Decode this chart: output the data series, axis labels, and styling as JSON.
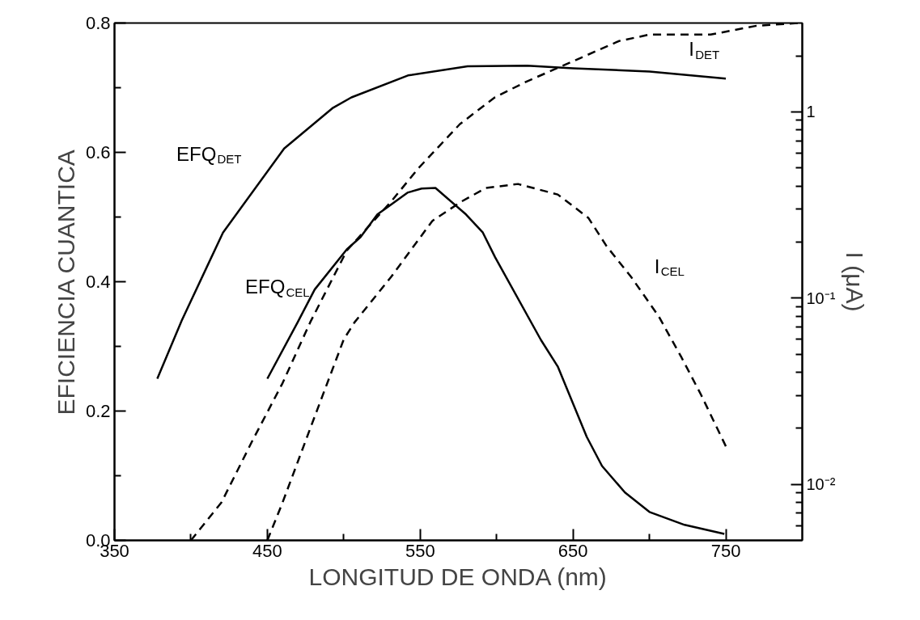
{
  "chart_data": {
    "type": "line",
    "xlabel": "LONGITUD DE ONDA (nm)",
    "ylabel": "EFICIENCIA CUANTICA",
    "y2label": "I (μA)",
    "xlim": [
      350,
      800
    ],
    "xticks": [
      350,
      {
        "value": 400,
        "label": null
      },
      450,
      {
        "value": 500,
        "label": null
      },
      550,
      {
        "value": 600,
        "label": null
      },
      650,
      {
        "value": 700,
        "label": null
      },
      750
    ],
    "ylim": [
      0,
      0.8
    ],
    "yticks": [
      {
        "value": 0,
        "label": "0.0"
      },
      {
        "value": 0.1,
        "label": null
      },
      0.2,
      {
        "value": 0.3,
        "label": null
      },
      0.4,
      {
        "value": 0.5,
        "label": null
      },
      0.6,
      {
        "value": 0.7,
        "label": null
      },
      0.8
    ],
    "y2lim": [
      0.005,
      3
    ],
    "log": "y2",
    "y2ticks": [
      {
        "value": 0.006,
        "label": null
      },
      {
        "value": 0.007,
        "label": null
      },
      {
        "value": 0.008,
        "label": null
      },
      {
        "value": 0.009,
        "label": null
      },
      {
        "value": 0.01,
        "label": "10⁻²"
      },
      {
        "value": 0.02,
        "label": null
      },
      {
        "value": 0.03,
        "label": null
      },
      {
        "value": 0.04,
        "label": null
      },
      {
        "value": 0.05,
        "label": null
      },
      {
        "value": 0.06,
        "label": null
      },
      {
        "value": 0.07,
        "label": null
      },
      {
        "value": 0.08,
        "label": null
      },
      {
        "value": 0.09,
        "label": null
      },
      {
        "value": 0.1,
        "label": "10⁻¹"
      },
      {
        "value": 0.2,
        "label": null
      },
      {
        "value": 0.3,
        "label": null
      },
      {
        "value": 0.4,
        "label": null
      },
      {
        "value": 0.5,
        "label": null
      },
      {
        "value": 0.6,
        "label": null
      },
      {
        "value": 0.7,
        "label": null
      },
      {
        "value": 0.8,
        "label": null
      },
      {
        "value": 0.9,
        "label": null
      },
      1,
      {
        "value": 2,
        "label": null
      }
    ],
    "grid": false,
    "marker": "none",
    "series": [
      {
        "name": "EFQ$_{DET}$",
        "color": "#000000",
        "line_style": "solid",
        "x": [
          378,
          394,
          421,
          461,
          493,
          505,
          542,
          581,
          620,
          650,
          700,
          750
        ],
        "values": [
          0.25,
          0.34,
          0.476,
          0.606,
          0.669,
          0.685,
          0.719,
          0.733,
          0.734,
          0.73,
          0.725,
          0.714
        ]
      },
      {
        "name": "EFQ$_{CEL}$",
        "color": "#000000",
        "line_style": "solid",
        "x": [
          450,
          470,
          481,
          502,
          511,
          522,
          542,
          551,
          560,
          580,
          591,
          599,
          629,
          640,
          659,
          669,
          684,
          700,
          723,
          749
        ],
        "values": [
          0.25,
          0.338,
          0.388,
          0.45,
          0.469,
          0.504,
          0.538,
          0.544,
          0.545,
          0.504,
          0.476,
          0.438,
          0.31,
          0.269,
          0.16,
          0.115,
          0.074,
          0.044,
          0.024,
          0.01
        ]
      },
      {
        "name": "I$_{DET}$",
        "color": "#000000",
        "line_style": "dashed",
        "axis": "y2",
        "x": [
          400,
          420,
          440,
          460,
          478,
          502,
          531,
          549,
          576,
          599,
          620,
          650,
          680,
          700,
          740,
          770,
          798
        ],
        "values": [
          0.005,
          0.008,
          0.017,
          0.035,
          0.074,
          0.18,
          0.33,
          0.5,
          0.86,
          1.2,
          1.46,
          1.87,
          2.4,
          2.6,
          2.6,
          2.9,
          3
        ]
      },
      {
        "name": "I$_{CEL}$",
        "color": "#000000",
        "line_style": "dashed",
        "axis": "y2",
        "x": [
          450,
          460,
          480,
          500,
          507,
          531,
          558,
          577,
          593,
          614,
          640,
          660,
          672,
          688,
          706,
          721,
          734,
          750
        ],
        "values": [
          0.005,
          0.008,
          0.022,
          0.06,
          0.074,
          0.13,
          0.26,
          0.33,
          0.39,
          0.41,
          0.36,
          0.27,
          0.19,
          0.13,
          0.08,
          0.048,
          0.03,
          0.016
        ]
      }
    ]
  }
}
